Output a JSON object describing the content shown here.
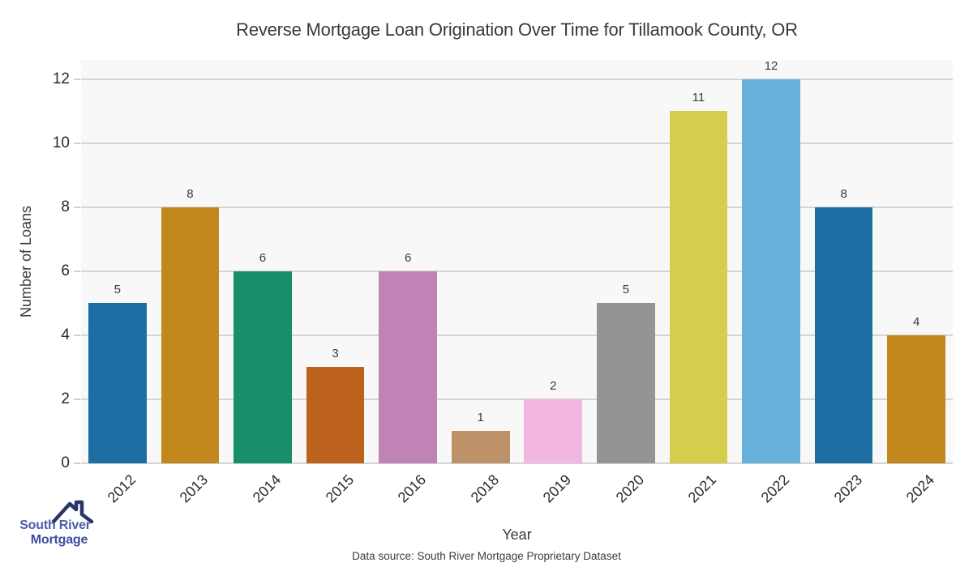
{
  "chart_data": {
    "type": "bar",
    "title": "Reverse Mortgage Loan Origination Over Time for Tillamook County, OR",
    "xlabel": "Year",
    "ylabel": "Number of Loans",
    "categories": [
      "2012",
      "2013",
      "2014",
      "2015",
      "2016",
      "2018",
      "2019",
      "2020",
      "2021",
      "2022",
      "2023",
      "2024"
    ],
    "values": [
      5,
      8,
      6,
      3,
      6,
      1,
      2,
      5,
      11,
      12,
      8,
      4
    ],
    "bar_colors": [
      "#1d6fa3",
      "#c2881e",
      "#188f6a",
      "#bd621c",
      "#bf84b5",
      "#bd9268",
      "#f1b7e0",
      "#949494",
      "#d5cd4d",
      "#68b0dc",
      "#1d6fa3",
      "#c2881e"
    ],
    "yticks": [
      0,
      2,
      4,
      6,
      8,
      10,
      12
    ],
    "ylim": [
      0,
      12.6
    ],
    "grid": "horizontal",
    "legend_position": "none",
    "value_labels_shown": true,
    "plot_bg": "#f8f8f8",
    "grid_color": "#d4d4d4",
    "tick_mark_color": "#cfcfcf"
  },
  "footer": {
    "source_note": "Data source: South River Mortgage Proprietary Dataset"
  },
  "logo": {
    "line1": "South River",
    "line2": "Mortgage",
    "roof_color": "#2b3467",
    "line1_color": "#4a5fa9",
    "line2_color": "#3a4da0"
  }
}
